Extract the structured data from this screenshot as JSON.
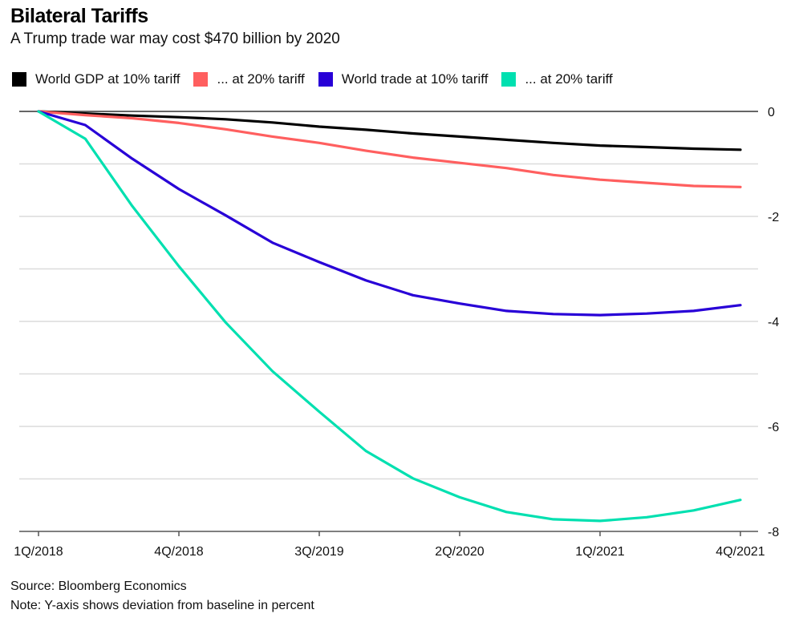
{
  "chart_data": {
    "type": "line",
    "title": "Bilateral Tariffs",
    "subtitle": "A Trump trade war may cost $470 billion by 2020",
    "xlabel": "",
    "ylabel": "",
    "x": [
      "1Q/2018",
      "2Q/2018",
      "3Q/2018",
      "4Q/2018",
      "1Q/2019",
      "2Q/2019",
      "3Q/2019",
      "4Q/2019",
      "1Q/2020",
      "2Q/2020",
      "3Q/2020",
      "4Q/2020",
      "1Q/2021",
      "2Q/2021",
      "3Q/2021",
      "4Q/2021"
    ],
    "x_tick_labels": [
      "1Q/2018",
      "4Q/2018",
      "3Q/2019",
      "2Q/2020",
      "1Q/2021",
      "4Q/2021"
    ],
    "x_tick_indices": [
      0,
      3,
      6,
      9,
      12,
      15
    ],
    "ylim": [
      -8,
      0
    ],
    "y_ticks": [
      0,
      -1,
      -2,
      -3,
      -4,
      -5,
      -6,
      -7,
      -8
    ],
    "y_tick_labels": [
      "0",
      "-2",
      "-4",
      "-6",
      "-8"
    ],
    "y_tick_label_values": [
      0,
      -2,
      -4,
      -6,
      -8
    ],
    "y_axis_side": "right",
    "grid": true,
    "legend_position": "top-left",
    "series": [
      {
        "name": "World GDP at 10% tariff",
        "color": "#000000",
        "values": [
          0,
          -0.04,
          -0.08,
          -0.11,
          -0.15,
          -0.21,
          -0.29,
          -0.35,
          -0.42,
          -0.48,
          -0.54,
          -0.6,
          -0.65,
          -0.68,
          -0.71,
          -0.73
        ]
      },
      {
        "name": "... at 20% tariff",
        "color": "#ff5f5f",
        "values": [
          0,
          -0.07,
          -0.13,
          -0.22,
          -0.34,
          -0.48,
          -0.6,
          -0.75,
          -0.88,
          -0.98,
          -1.08,
          -1.21,
          -1.3,
          -1.36,
          -1.42,
          -1.44
        ]
      },
      {
        "name": "World trade at 10% tariff",
        "color": "#2800d7",
        "values": [
          0,
          -0.26,
          -0.9,
          -1.48,
          -1.98,
          -2.5,
          -2.87,
          -3.22,
          -3.5,
          -3.66,
          -3.8,
          -3.86,
          -3.88,
          -3.85,
          -3.8,
          -3.69
        ]
      },
      {
        "name": "... at 20% tariff",
        "color": "#00e0b0",
        "values": [
          0,
          -0.52,
          -1.8,
          -2.95,
          -4.02,
          -4.95,
          -5.72,
          -6.47,
          -6.99,
          -7.35,
          -7.63,
          -7.77,
          -7.8,
          -7.73,
          -7.6,
          -7.4
        ]
      }
    ]
  },
  "header": {
    "title": "Bilateral Tariffs",
    "subtitle": "A Trump trade war may cost $470 billion by 2020"
  },
  "legend": [
    {
      "label": "World GDP at 10% tariff",
      "color": "#000000"
    },
    {
      "label": "... at 20% tariff",
      "color": "#ff5f5f"
    },
    {
      "label": "World trade at 10% tariff",
      "color": "#2800d7"
    },
    {
      "label": "... at 20% tariff",
      "color": "#00e0b0"
    }
  ],
  "footer": {
    "source": "Source: Bloomberg Economics",
    "note": "Note: Y-axis shows deviation from baseline in percent"
  },
  "colors": {
    "gridline": "#dcdcdc",
    "zero_line": "#666666",
    "axis": "#555555",
    "text": "#111111"
  }
}
